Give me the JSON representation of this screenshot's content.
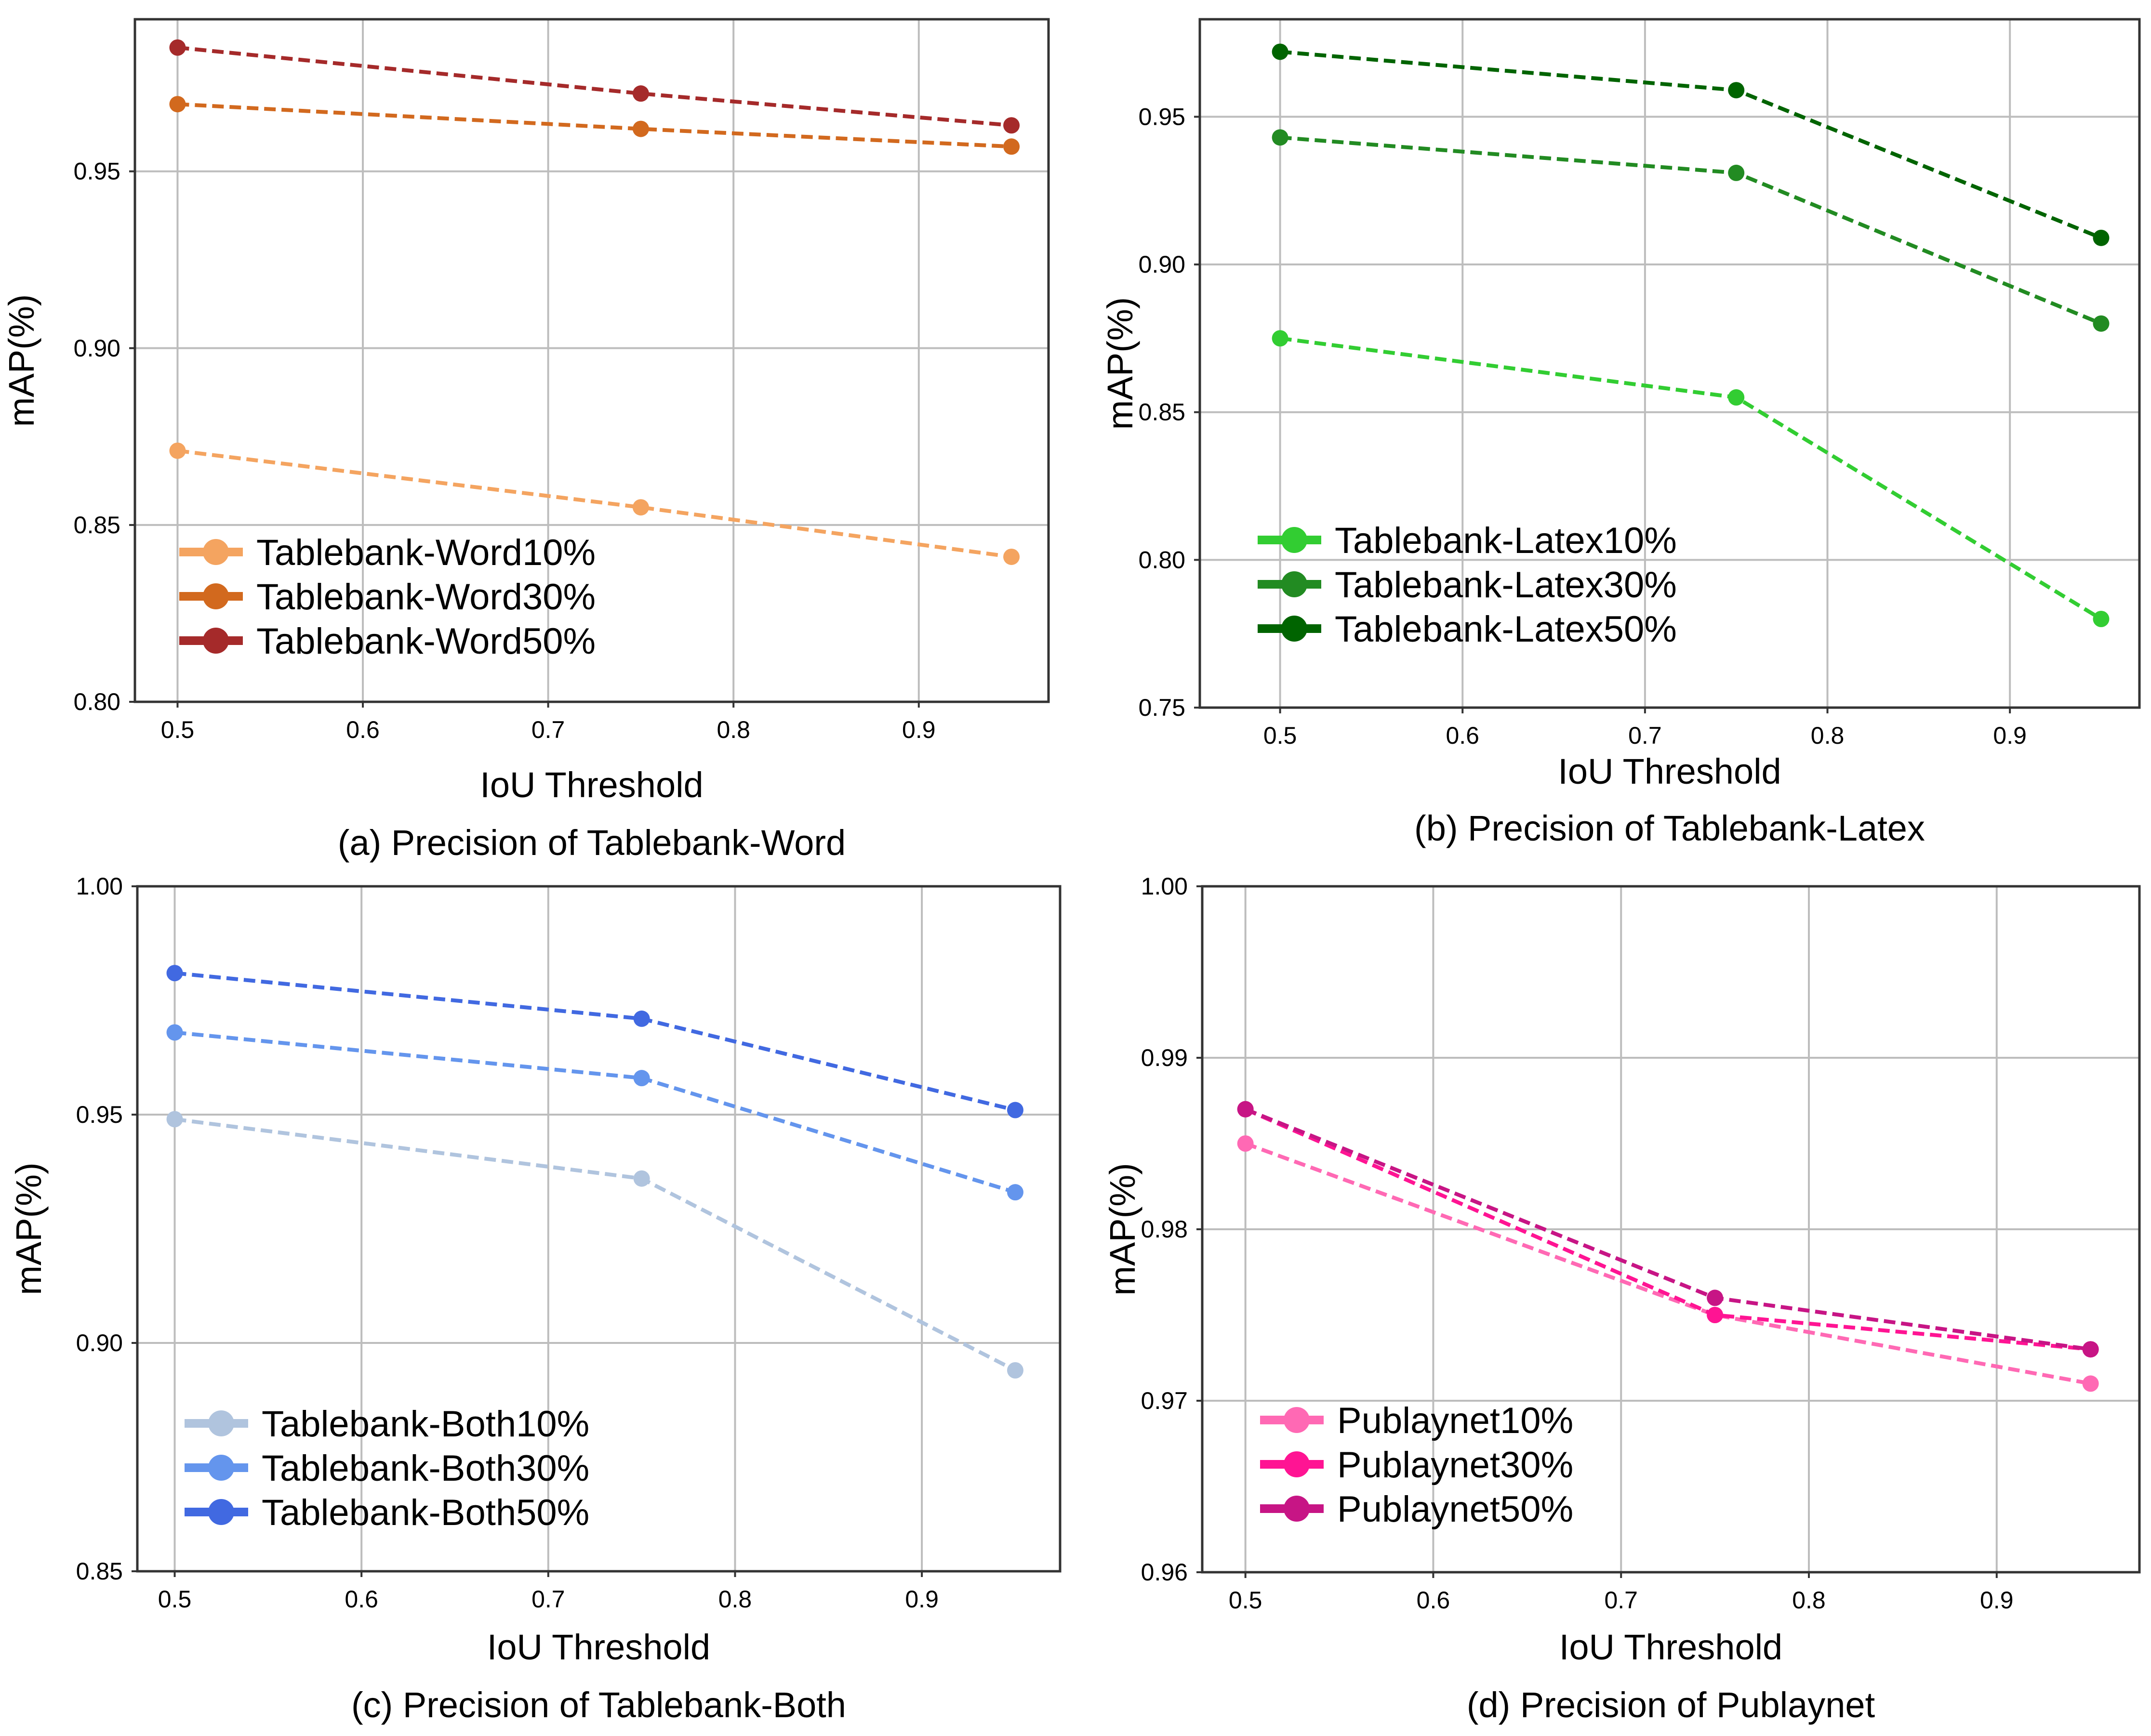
{
  "chart_data": [
    {
      "type": "line",
      "panel": "a",
      "caption": "(a) Precision of Tablebank-Word",
      "xlabel": "IoU Threshold",
      "ylabel": "mAP(%)",
      "xlim": [
        0.477,
        0.97
      ],
      "ylim": [
        0.8,
        0.993
      ],
      "xticks": [
        0.5,
        0.6,
        0.7,
        0.8,
        0.9
      ],
      "xtick_labels": [
        "0.5",
        "0.6",
        "0.7",
        "0.8",
        "0.9"
      ],
      "yticks": [
        0.8,
        0.85,
        0.9,
        0.95
      ],
      "ytick_labels": [
        "0.80",
        "0.85",
        "0.90",
        "0.95"
      ],
      "grid": true,
      "legend_position": "lower-left",
      "x": [
        0.5,
        0.75,
        0.95
      ],
      "series": [
        {
          "name": "Tablebank-Word10%",
          "color": "#F4A460",
          "values": [
            0.871,
            0.855,
            0.841
          ]
        },
        {
          "name": "Tablebank-Word30%",
          "color": "#D2691E",
          "values": [
            0.969,
            0.962,
            0.957
          ]
        },
        {
          "name": "Tablebank-Word50%",
          "color": "#A52A2A",
          "values": [
            0.985,
            0.972,
            0.963
          ]
        }
      ]
    },
    {
      "type": "line",
      "panel": "b",
      "caption": "(b) Precision of Tablebank-Latex",
      "xlabel": "IoU Threshold",
      "ylabel": "mAP(%)",
      "xlim": [
        0.456,
        0.971
      ],
      "ylim": [
        0.75,
        0.983
      ],
      "xticks": [
        0.5,
        0.6,
        0.7,
        0.8,
        0.9
      ],
      "xtick_labels": [
        "0.5",
        "0.6",
        "0.7",
        "0.8",
        "0.9"
      ],
      "yticks": [
        0.75,
        0.8,
        0.85,
        0.9,
        0.95
      ],
      "ytick_labels": [
        "0.75",
        "0.80",
        "0.85",
        "0.90",
        "0.95"
      ],
      "grid": true,
      "legend_position": "lower-left",
      "x": [
        0.5,
        0.75,
        0.95
      ],
      "series": [
        {
          "name": "Tablebank-Latex10%",
          "color": "#32CD32",
          "values": [
            0.875,
            0.855,
            0.78
          ]
        },
        {
          "name": "Tablebank-Latex30%",
          "color": "#228B22",
          "values": [
            0.943,
            0.931,
            0.88
          ]
        },
        {
          "name": "Tablebank-Latex50%",
          "color": "#006400",
          "values": [
            0.972,
            0.959,
            0.909
          ]
        }
      ]
    },
    {
      "type": "line",
      "panel": "c",
      "caption": "(c) Precision of Tablebank-Both",
      "xlabel": "IoU Threshold",
      "ylabel": "mAP(%)",
      "xlim": [
        0.48,
        0.974
      ],
      "ylim": [
        0.85,
        1.0
      ],
      "xticks": [
        0.5,
        0.6,
        0.7,
        0.8,
        0.9
      ],
      "xtick_labels": [
        "0.5",
        "0.6",
        "0.7",
        "0.8",
        "0.9"
      ],
      "yticks": [
        0.85,
        0.9,
        0.95,
        1.0
      ],
      "ytick_labels": [
        "0.85",
        "0.90",
        "0.95",
        "1.00"
      ],
      "grid": true,
      "legend_position": "lower-left",
      "x": [
        0.5,
        0.75,
        0.95
      ],
      "series": [
        {
          "name": "Tablebank-Both10%",
          "color": "#B0C4DE",
          "values": [
            0.949,
            0.936,
            0.894
          ]
        },
        {
          "name": "Tablebank-Both30%",
          "color": "#6495ED",
          "values": [
            0.968,
            0.958,
            0.933
          ]
        },
        {
          "name": "Tablebank-Both50%",
          "color": "#4169E1",
          "values": [
            0.981,
            0.971,
            0.951
          ]
        }
      ]
    },
    {
      "type": "line",
      "panel": "d",
      "caption": "(d) Precision of Publaynet",
      "xlabel": "IoU Threshold",
      "ylabel": "mAP(%)",
      "xlim": [
        0.477,
        0.976
      ],
      "ylim": [
        0.96,
        1.0
      ],
      "xticks": [
        0.5,
        0.6,
        0.7,
        0.8,
        0.9
      ],
      "xtick_labels": [
        "0.5",
        "0.6",
        "0.7",
        "0.8",
        "0.9"
      ],
      "yticks": [
        0.96,
        0.97,
        0.98,
        0.99,
        1.0
      ],
      "ytick_labels": [
        "0.96",
        "0.97",
        "0.98",
        "0.99",
        "1.00"
      ],
      "grid": true,
      "legend_position": "lower-left",
      "x": [
        0.5,
        0.75,
        0.95
      ],
      "series": [
        {
          "name": "Publaynet10%",
          "color": "#FF69B4",
          "values": [
            0.985,
            0.975,
            0.971
          ]
        },
        {
          "name": "Publaynet30%",
          "color": "#FF1493",
          "values": [
            0.987,
            0.975,
            0.973
          ]
        },
        {
          "name": "Publaynet50%",
          "color": "#C71585",
          "values": [
            0.987,
            0.976,
            0.973
          ]
        }
      ]
    }
  ]
}
